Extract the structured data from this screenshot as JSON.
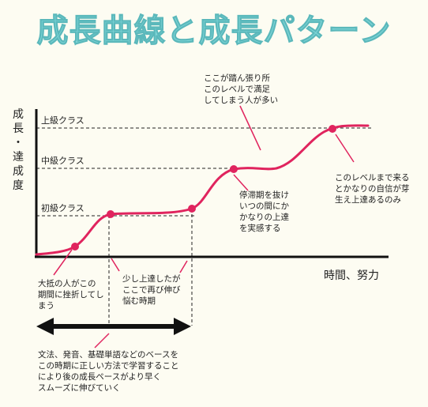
{
  "title": "成長曲線と成長パターン",
  "y_axis_label": [
    "成",
    "長",
    "・",
    "達",
    "成",
    "度"
  ],
  "x_axis_label": "時間、努力",
  "levels": {
    "advanced": "上級クラス",
    "intermediate": "中級クラス",
    "beginner": "初級クラス"
  },
  "notes": {
    "many_give_up": "大抵の人がこの\n期間に挫折してし\nまう",
    "plateau_low": "少し上達したが\nここで再び伸び\n悩む時期",
    "many_satisfied": "ここが踏ん張り所\nこのレベルで満足\nしてしまう人が多い",
    "break_plateau": "停滞期を抜け\nいつの間にか\nかなりの上達\nを実感する",
    "confidence": "このレベルまで来る\nとかなりの自信が芽\n生え上達あるのみ",
    "foundation": "文法、発音、基礎単語などのベースを\nこの時期に正しい方法で学習すること\nにより後の成長ペースがより早く\nスムーズに伸びていく"
  },
  "colors": {
    "title": "#7fd6d8",
    "curve": "#e0245e",
    "axis": "#111111"
  }
}
